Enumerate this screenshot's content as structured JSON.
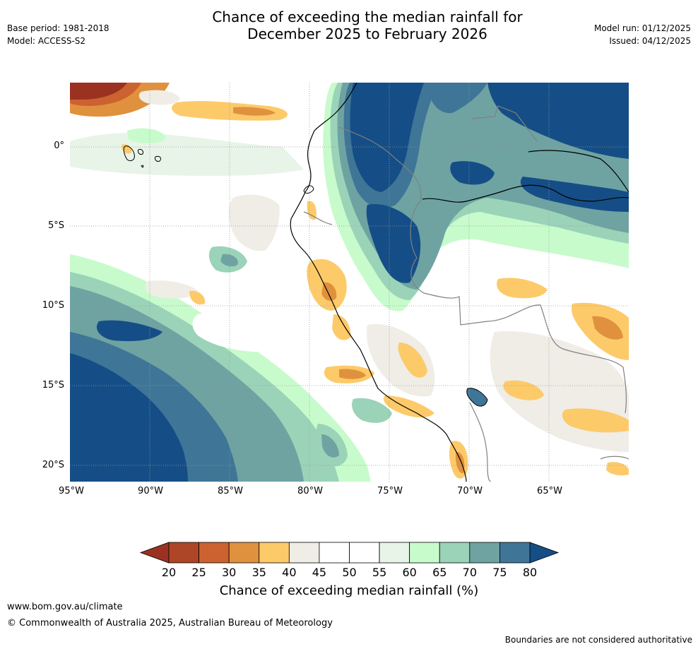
{
  "header": {
    "title_line1": "Chance of exceeding the median rainfall for",
    "title_line2": "December 2025 to February 2026",
    "base_period": "Base period: 1981-2018",
    "model": "Model: ACCESS-S2",
    "model_run": "Model run: 01/12/2025",
    "issued": "Issued: 04/12/2025"
  },
  "map": {
    "lat_labels": [
      "0°",
      "5°S",
      "10°S",
      "15°S",
      "20°S"
    ],
    "lon_labels": [
      "95°W",
      "90°W",
      "85°W",
      "80°W",
      "75°W",
      "70°W",
      "65°W"
    ],
    "lon_range": [
      -95,
      -60
    ],
    "lat_range": [
      -21,
      4
    ],
    "colors": {
      "dry_strong": "#9b3221",
      "dry": "#e0913e",
      "neutral": "#efede6",
      "land_edge": "#000000",
      "border": "#808080",
      "wet": "#6ea3a2",
      "wet_strong": "#154e86"
    }
  },
  "colorbar": {
    "title": "Chance of exceeding median rainfall (%)",
    "ticks": [
      "20",
      "25",
      "30",
      "35",
      "40",
      "45",
      "50",
      "55",
      "60",
      "65",
      "70",
      "75",
      "80"
    ],
    "below_color": "#9b3221",
    "above_color": "#154e86",
    "colors": [
      "#ad4527",
      "#cb6230",
      "#e0913e",
      "#fdca6a",
      "#efede6",
      "#ffffff",
      "#ffffff",
      "#e8f4e8",
      "#c8fbcc",
      "#9bd3b8",
      "#6ea3a2",
      "#3f7597"
    ]
  },
  "footer": {
    "url": "www.bom.gov.au/climate",
    "copyright": "© Commonwealth of Australia 2025, Australian Bureau of Meteorology",
    "disclaimer": "Boundaries are not considered authoritative"
  }
}
